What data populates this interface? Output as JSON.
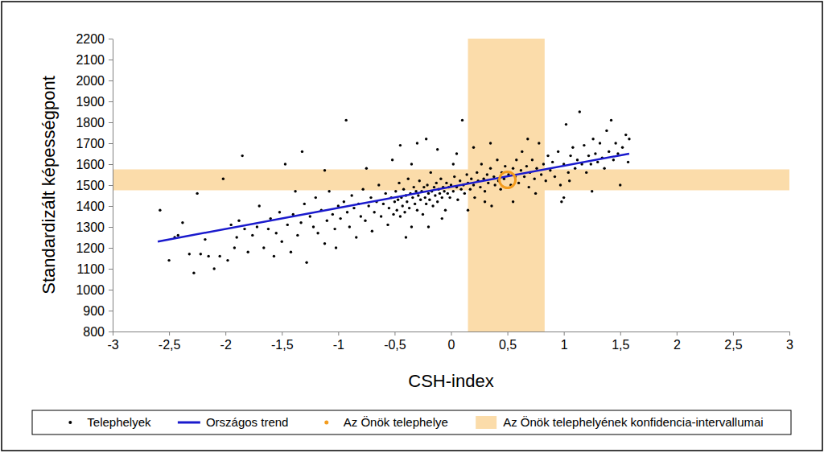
{
  "chart_data": {
    "type": "scatter",
    "x_label": "CSH-index",
    "y_label": "Standardizált képességpont",
    "xlim": [
      -3,
      3
    ],
    "xticks": [
      -3,
      {
        "value": -2.5,
        "label": "-2,5"
      },
      -2,
      {
        "value": -1.5,
        "label": "-1,5"
      },
      -1,
      {
        "value": -0.5,
        "label": "-0,5"
      },
      0,
      {
        "value": 0.5,
        "label": "0,5"
      },
      1,
      {
        "value": 1.5,
        "label": "1,5"
      },
      2,
      {
        "value": 2.5,
        "label": "2,5"
      },
      3
    ],
    "ylim": [
      800,
      2200
    ],
    "yticks": [
      800,
      900,
      1000,
      1100,
      1200,
      1300,
      1400,
      1500,
      1600,
      1700,
      1800,
      1900,
      2000,
      2100,
      2200
    ],
    "grid": false,
    "legend": "bottom",
    "series": [
      {
        "name": "Telephelyek",
        "type": "scatter",
        "marker": "circle",
        "color": "#000000",
        "x": [
          -2.58,
          -2.5,
          -2.45,
          -2.42,
          -2.38,
          -2.32,
          -2.28,
          -2.25,
          -2.22,
          -2.18,
          -2.15,
          -2.1,
          -2.05,
          -2.02,
          -1.98,
          -1.95,
          -1.92,
          -1.9,
          -1.88,
          -1.85,
          -1.83,
          -1.8,
          -1.76,
          -1.72,
          -1.7,
          -1.66,
          -1.62,
          -1.6,
          -1.57,
          -1.55,
          -1.52,
          -1.5,
          -1.47,
          -1.45,
          -1.42,
          -1.4,
          -1.36,
          -1.33,
          -1.3,
          -1.28,
          -1.25,
          -1.22,
          -1.2,
          -1.18,
          -1.15,
          -1.12,
          -1.1,
          -1.08,
          -1.05,
          -1.03,
          -1,
          -1.32,
          -1.38,
          -1.12,
          -1.02,
          -0.98,
          -0.95,
          -0.93,
          -0.92,
          -0.9,
          -0.88,
          -0.86,
          -0.84,
          -0.82,
          -0.8,
          -0.78,
          -0.76,
          -0.75,
          -0.73,
          -0.71,
          -0.7,
          -0.68,
          -0.66,
          -0.64,
          -0.62,
          -0.6,
          -0.58,
          -0.56,
          -0.55,
          -0.53,
          -0.52,
          -0.51,
          -0.5,
          -0.49,
          -0.48,
          -0.47,
          -0.46,
          -0.45,
          -0.44,
          -0.43,
          -0.42,
          -0.41,
          -0.4,
          -0.39,
          -0.38,
          -0.37,
          -0.36,
          -0.35,
          -0.34,
          -0.33,
          -0.32,
          -0.31,
          -0.3,
          -0.29,
          -0.28,
          -0.27,
          -0.26,
          -0.25,
          -0.24,
          -0.23,
          -0.22,
          -0.21,
          -0.2,
          -0.19,
          -0.18,
          -0.17,
          -0.16,
          -0.15,
          -0.14,
          -0.13,
          -0.12,
          -0.11,
          -0.1,
          -0.09,
          -0.08,
          -0.07,
          -0.06,
          -0.05,
          -0.04,
          -0.03,
          -0.02,
          -0.01,
          -0.45,
          -0.3,
          -0.22,
          -0.12,
          -0.4,
          -0.2,
          -0.08,
          -0.35,
          0,
          0.02,
          0.03,
          0.05,
          0.06,
          0.08,
          0.09,
          0.1,
          0.11,
          0.12,
          0.14,
          0.15,
          0.17,
          0.18,
          0.2,
          0.21,
          0.23,
          0.24,
          0.26,
          0.27,
          0.29,
          0.3,
          0.32,
          0.33,
          0.35,
          0.36,
          0.38,
          0.39,
          0.41,
          0.42,
          0.44,
          0.45,
          0.47,
          0.48,
          0.05,
          0.2,
          0.35,
          0.15,
          0.3,
          0.02,
          0.51,
          0.53,
          0.55,
          0.57,
          0.58,
          0.6,
          0.62,
          0.63,
          0.65,
          0.67,
          0.69,
          0.7,
          0.72,
          0.74,
          0.76,
          0.78,
          0.8,
          0.82,
          0.84,
          0.86,
          0.88,
          0.9,
          0.92,
          0.95,
          0.97,
          0.55,
          0.68,
          0.75,
          1,
          1.02,
          1.04,
          1.06,
          1.08,
          1.1,
          1.12,
          1.14,
          1.16,
          1.18,
          1.2,
          1.22,
          1.24,
          1.26,
          1.28,
          1.3,
          1.32,
          1.34,
          1.36,
          1.38,
          1.4,
          1.42,
          1.44,
          1.46,
          1.48,
          1.5,
          1.52,
          1.55,
          1.57,
          1.58,
          0.98,
          1.05,
          1.25,
          1
        ],
        "values": [
          1380,
          1140,
          1250,
          1260,
          1320,
          1170,
          1080,
          1460,
          1170,
          1240,
          1160,
          1100,
          1160,
          1530,
          1140,
          1310,
          1200,
          1250,
          1330,
          1640,
          1290,
          1180,
          1260,
          1300,
          1400,
          1200,
          1290,
          1340,
          1160,
          1270,
          1370,
          1230,
          1600,
          1310,
          1180,
          1360,
          1260,
          1320,
          1410,
          1130,
          1350,
          1300,
          1440,
          1270,
          1380,
          1220,
          1330,
          1470,
          1360,
          1290,
          1400,
          1660,
          1470,
          1570,
          1200,
          1340,
          1420,
          1810,
          1370,
          1300,
          1450,
          1390,
          1250,
          1410,
          1350,
          1480,
          1330,
          1580,
          1400,
          1440,
          1280,
          1370,
          1420,
          1500,
          1350,
          1410,
          1460,
          1310,
          1390,
          1440,
          1620,
          1360,
          1420,
          1470,
          1380,
          1430,
          1510,
          1350,
          1440,
          1400,
          1480,
          1370,
          1450,
          1420,
          1530,
          1390,
          1460,
          1300,
          1440,
          1490,
          1410,
          1470,
          1380,
          1450,
          1520,
          1430,
          1470,
          1360,
          1490,
          1440,
          1410,
          1500,
          1460,
          1430,
          1560,
          1470,
          1400,
          1490,
          1450,
          1510,
          1420,
          1480,
          1460,
          1530,
          1440,
          1490,
          1470,
          1380,
          1510,
          1460,
          1490,
          1440,
          1690,
          1700,
          1720,
          1670,
          1250,
          1300,
          1340,
          1600,
          1500,
          1470,
          1540,
          1490,
          1430,
          1520,
          1480,
          1810,
          1500,
          1460,
          1550,
          1510,
          1480,
          1530,
          1500,
          1440,
          1560,
          1520,
          1490,
          1600,
          1530,
          1470,
          1550,
          1510,
          1580,
          1400,
          1540,
          1500,
          1620,
          1520,
          1480,
          1560,
          1530,
          1590,
          1650,
          1680,
          1700,
          1380,
          1420,
          1600,
          1550,
          1500,
          1580,
          1540,
          1620,
          1510,
          1570,
          1660,
          1540,
          1590,
          1490,
          1560,
          1620,
          1530,
          1580,
          1700,
          1550,
          1600,
          1520,
          1640,
          1570,
          1610,
          1540,
          1660,
          1500,
          1420,
          1720,
          1460,
          1600,
          1790,
          1560,
          1640,
          1680,
          1580,
          1620,
          1850,
          1600,
          1690,
          1560,
          1640,
          1600,
          1720,
          1650,
          1610,
          1700,
          1630,
          1580,
          1760,
          1660,
          1810,
          1620,
          1700,
          1650,
          1500,
          1680,
          1740,
          1610,
          1720,
          1420,
          1520,
          1470,
          1440
        ]
      },
      {
        "name": "Országos trend",
        "type": "line",
        "color": "#1a1acd",
        "x": [
          -2.6,
          1.58
        ],
        "values": [
          1230,
          1650
        ]
      },
      {
        "name": "Az Önök telephelye",
        "type": "scatter",
        "marker": "ring",
        "color": "#f39c1e",
        "x": [
          0.5
        ],
        "values": [
          1525
        ]
      },
      {
        "name": "Az Önök telephelyének konfidencia-intervallumai",
        "type": "band",
        "color": "#fbdcaa",
        "x_range": [
          0.15,
          0.83
        ],
        "y_range": [
          1475,
          1575
        ]
      }
    ]
  }
}
